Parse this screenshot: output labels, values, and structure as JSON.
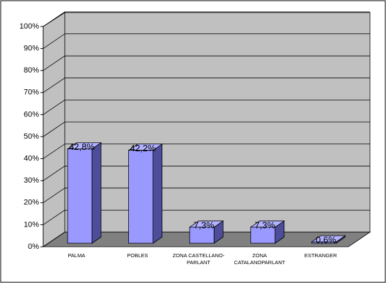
{
  "chart_data": {
    "type": "bar3d",
    "categories": [
      "PALMA",
      "POBLES",
      "ZONA CASTELLANO-PARLANT",
      "ZONA CATALANOPARLANT",
      "ESTRANGER"
    ],
    "values": [
      42.8,
      42.2,
      7.3,
      7.3,
      0.6
    ],
    "value_labels": [
      "42,8%",
      "42,2%",
      "7,3%",
      "7,3%",
      "0,6%"
    ],
    "color": "#9999ff",
    "ylim": [
      0,
      100
    ],
    "yticks": [
      {
        "value": 0,
        "label": "0%"
      },
      {
        "value": 10,
        "label": "10%"
      },
      {
        "value": 20,
        "label": "20%"
      },
      {
        "value": 30,
        "label": "30%"
      },
      {
        "value": 40,
        "label": "40%"
      },
      {
        "value": 50,
        "label": "50%"
      },
      {
        "value": 60,
        "label": "60%"
      },
      {
        "value": 70,
        "label": "70%"
      },
      {
        "value": 80,
        "label": "80%"
      },
      {
        "value": 90,
        "label": "90%"
      },
      {
        "value": 100,
        "label": "100%"
      }
    ],
    "grid": true
  }
}
